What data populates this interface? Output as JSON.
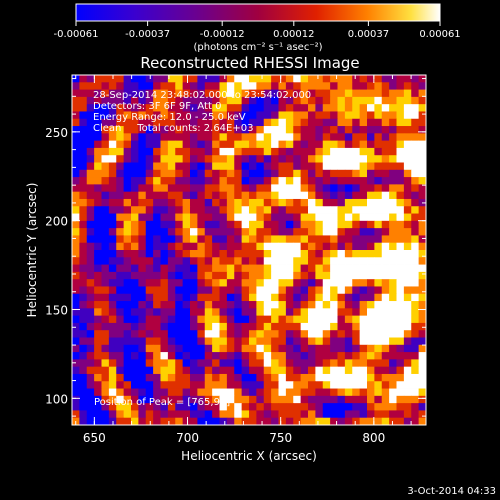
{
  "chart_data": {
    "type": "heatmap",
    "title": "Reconstructed RHESSI Image",
    "xlabel": "Heliocentric X (arcsec)",
    "ylabel": "Heliocentric Y (arcsec)",
    "xlim": [
      638,
      828
    ],
    "ylim": [
      85,
      282
    ],
    "x_ticks": [
      "650",
      "700",
      "750",
      "800"
    ],
    "y_ticks": [
      "100",
      "150",
      "200",
      "250"
    ],
    "x_tick_values": [
      650,
      700,
      750,
      800
    ],
    "y_tick_values": [
      100,
      150,
      200,
      250
    ],
    "colorbar": {
      "units": "(photons cm⁻² s⁻¹ asec⁻²)",
      "ticks": [
        "-0.00061",
        "-0.00037",
        "-0.00012",
        "0.00012",
        "0.00037",
        "0.00061"
      ],
      "range": [
        -0.00061,
        0.00061
      ]
    },
    "annotations": [
      "28-Sep-2014 23:48:02.000 to 23:54:02.000",
      "Detectors: 3F 6F 9F, Att 0",
      "Energy Range: 12.0 - 25.0 keV",
      "Clean     Total counts: 2.64E+03"
    ],
    "peak_label": "Position of Peak = [765,92]",
    "peak": [
      765,
      92
    ],
    "footer_date": "3-Oct-2014 04:33",
    "grid": false,
    "colors": {
      "background": "#000000",
      "axes": "#ffffff",
      "colormap": [
        "#0000ff",
        "#4000c0",
        "#800080",
        "#b00040",
        "#e03000",
        "#ff8000",
        "#ffd000",
        "#ffffff"
      ]
    }
  }
}
